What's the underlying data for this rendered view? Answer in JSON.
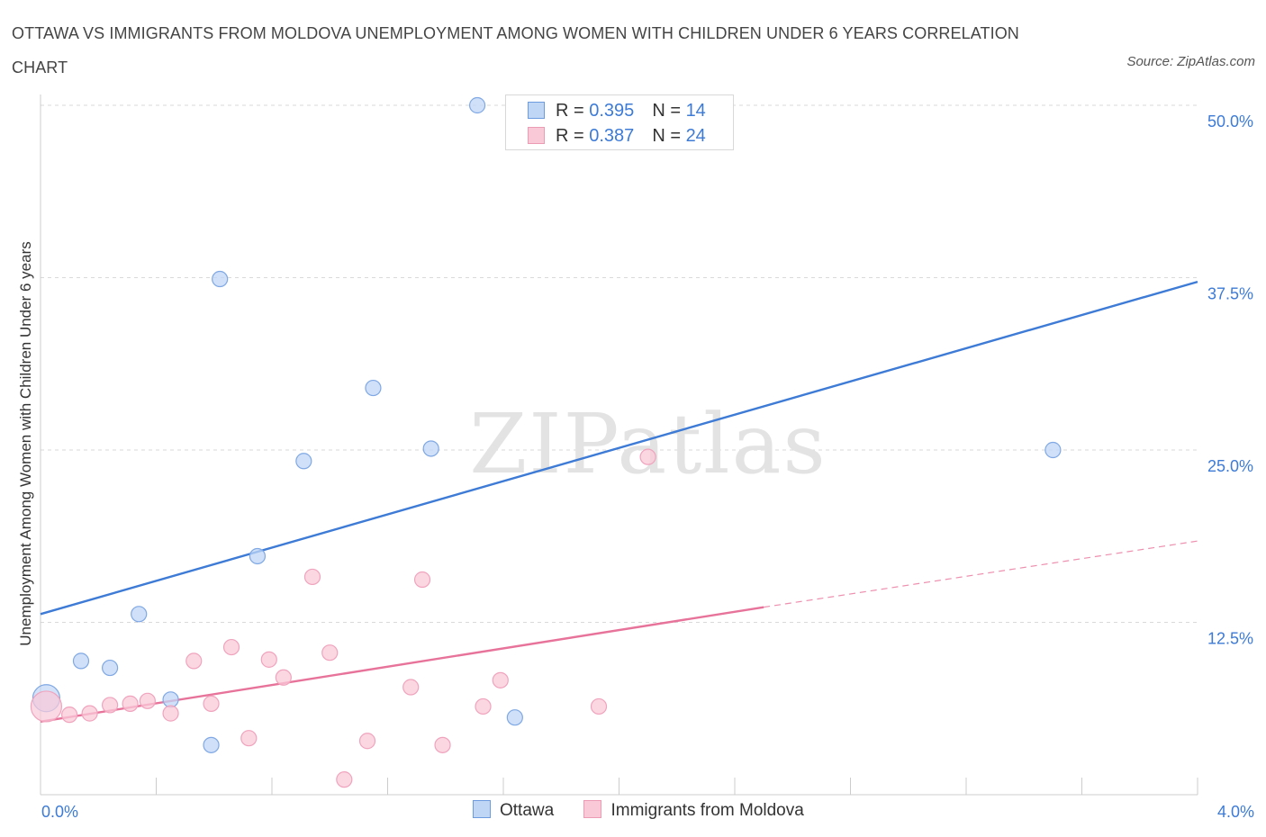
{
  "header": {
    "title": "OTTAWA VS IMMIGRANTS FROM MOLDOVA UNEMPLOYMENT AMONG WOMEN WITH CHILDREN UNDER 6 YEARS CORRELATION CHART",
    "source": "Source: ZipAtlas.com"
  },
  "colors": {
    "ottawa": "#3d7bd6",
    "moldova": "#e8739a",
    "ottawa_fill": "#c0d6f5",
    "moldova_fill": "#f9c9d8",
    "tick_label": "#3d7bd6",
    "grid": "#d9d9d9"
  },
  "legend": {
    "rows": [
      {
        "r_label": "R = ",
        "r_value": "0.395",
        "n_label": "N = ",
        "n_value": "14"
      },
      {
        "r_label": "R = ",
        "r_value": "0.387",
        "n_label": "N = ",
        "n_value": "24"
      }
    ]
  },
  "bottom_legend": {
    "ottawa": "Ottawa",
    "moldova": "Immigrants from Moldova"
  },
  "chart_data": {
    "type": "scatter",
    "title": "OTTAWA VS IMMIGRANTS FROM MOLDOVA UNEMPLOYMENT AMONG WOMEN WITH CHILDREN UNDER 6 YEARS CORRELATION CHART",
    "xlabel": "",
    "ylabel": "Unemployment Among Women with Children Under 6 years",
    "xlim": [
      0,
      4
    ],
    "ylim": [
      0,
      50
    ],
    "x_tick_labels": [
      "0.0%",
      "4.0%"
    ],
    "y_ticks": [
      12.5,
      25,
      37.5,
      50
    ],
    "y_tick_labels": [
      "12.5%",
      "25.0%",
      "37.5%",
      "50.0%"
    ],
    "grid": true,
    "watermark": "ZIPatlas",
    "series": [
      {
        "name": "Ottawa",
        "color": "#3d7bd6",
        "points": [
          [
            0.02,
            7.0
          ],
          [
            0.14,
            9.7
          ],
          [
            0.24,
            9.2
          ],
          [
            0.34,
            13.1
          ],
          [
            0.45,
            6.9
          ],
          [
            0.59,
            3.6
          ],
          [
            0.62,
            37.4
          ],
          [
            0.75,
            17.3
          ],
          [
            0.91,
            24.2
          ],
          [
            1.15,
            29.5
          ],
          [
            1.35,
            25.1
          ],
          [
            1.51,
            50.0
          ],
          [
            1.64,
            5.6
          ],
          [
            3.5,
            25.0
          ]
        ],
        "trend": {
          "x": [
            0,
            4
          ],
          "y": [
            13.1,
            37.2
          ]
        }
      },
      {
        "name": "Immigrants from Moldova",
        "color": "#e8739a",
        "points": [
          [
            0.02,
            6.4
          ],
          [
            0.1,
            5.8
          ],
          [
            0.17,
            5.9
          ],
          [
            0.24,
            6.5
          ],
          [
            0.31,
            6.6
          ],
          [
            0.37,
            6.8
          ],
          [
            0.45,
            5.9
          ],
          [
            0.53,
            9.7
          ],
          [
            0.59,
            6.6
          ],
          [
            0.66,
            10.7
          ],
          [
            0.72,
            4.1
          ],
          [
            0.79,
            9.8
          ],
          [
            0.84,
            8.5
          ],
          [
            0.94,
            15.8
          ],
          [
            1.0,
            10.3
          ],
          [
            1.05,
            1.1
          ],
          [
            1.13,
            3.9
          ],
          [
            1.28,
            7.8
          ],
          [
            1.32,
            15.6
          ],
          [
            1.39,
            3.6
          ],
          [
            1.53,
            6.4
          ],
          [
            1.59,
            8.3
          ],
          [
            1.93,
            6.4
          ],
          [
            2.1,
            24.5
          ]
        ],
        "trend": {
          "x": [
            0,
            2.5
          ],
          "y": [
            5.3,
            13.6
          ]
        },
        "trend_extension": {
          "x": [
            2.5,
            4
          ],
          "y": [
            13.6,
            18.4
          ]
        }
      }
    ]
  }
}
